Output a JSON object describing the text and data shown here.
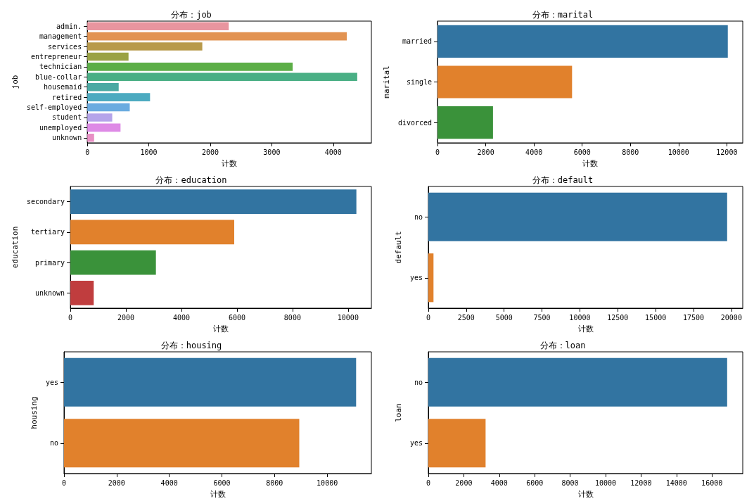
{
  "chart_data": [
    {
      "type": "bar",
      "orientation": "horizontal",
      "title": "分布：job",
      "xlabel": "计数",
      "ylabel": "job",
      "categories": [
        "admin.",
        "management",
        "services",
        "entrepreneur",
        "technician",
        "blue-collar",
        "housemaid",
        "retired",
        "self-employed",
        "student",
        "unemployed",
        "unknown"
      ],
      "values": [
        2300,
        4220,
        1870,
        670,
        3340,
        4390,
        510,
        1020,
        690,
        405,
        540,
        110
      ],
      "colors": [
        "#e8959f",
        "#e29352",
        "#b89a4b",
        "#9aa244",
        "#5cae47",
        "#4aaf85",
        "#4aa9a3",
        "#4caac0",
        "#6aabe0",
        "#b5a4ea",
        "#de8ae6",
        "#e88fc4"
      ],
      "xlim": [
        0,
        4620
      ],
      "xticks": [
        0,
        1000,
        2000,
        3000,
        4000
      ],
      "grid": false
    },
    {
      "type": "bar",
      "orientation": "horizontal",
      "title": "分布：marital",
      "xlabel": "计数",
      "ylabel": "marital",
      "categories": [
        "married",
        "single",
        "divorced"
      ],
      "values": [
        12040,
        5580,
        2300
      ],
      "colors": [
        "#3274a1",
        "#e1812c",
        "#3a923a"
      ],
      "xlim": [
        0,
        12660
      ],
      "xticks": [
        0,
        2000,
        4000,
        6000,
        8000,
        10000,
        12000
      ],
      "grid": false
    },
    {
      "type": "bar",
      "orientation": "horizontal",
      "title": "分布：education",
      "xlabel": "计数",
      "ylabel": "education",
      "categories": [
        "secondary",
        "tertiary",
        "primary",
        "unknown"
      ],
      "values": [
        10300,
        5900,
        3080,
        840
      ],
      "colors": [
        "#3274a1",
        "#e1812c",
        "#3a923a",
        "#c03d3e"
      ],
      "xlim": [
        0,
        10840
      ],
      "xticks": [
        0,
        2000,
        4000,
        6000,
        8000,
        10000
      ],
      "grid": false
    },
    {
      "type": "bar",
      "orientation": "horizontal",
      "title": "分布：default",
      "xlabel": "计数",
      "ylabel": "default",
      "categories": [
        "no",
        "yes"
      ],
      "values": [
        19720,
        340
      ],
      "colors": [
        "#3274a1",
        "#e1812c"
      ],
      "xlim": [
        0,
        20750
      ],
      "xticks": [
        0,
        2500,
        5000,
        7500,
        10000,
        12500,
        15000,
        17500,
        20000
      ],
      "grid": false
    },
    {
      "type": "bar",
      "orientation": "horizontal",
      "title": "分布：housing",
      "xlabel": "计数",
      "ylabel": "housing",
      "categories": [
        "yes",
        "no"
      ],
      "values": [
        11100,
        8940
      ],
      "colors": [
        "#3274a1",
        "#e1812c"
      ],
      "xlim": [
        0,
        11680
      ],
      "xticks": [
        0,
        2000,
        4000,
        6000,
        8000,
        10000
      ],
      "grid": false
    },
    {
      "type": "bar",
      "orientation": "horizontal",
      "title": "分布：loan",
      "xlabel": "计数",
      "ylabel": "loan",
      "categories": [
        "no",
        "yes"
      ],
      "values": [
        16860,
        3230
      ],
      "colors": [
        "#3274a1",
        "#e1812c"
      ],
      "xlim": [
        0,
        17740
      ],
      "xticks": [
        0,
        2000,
        4000,
        6000,
        8000,
        10000,
        12000,
        14000,
        16000
      ],
      "grid": false
    }
  ]
}
